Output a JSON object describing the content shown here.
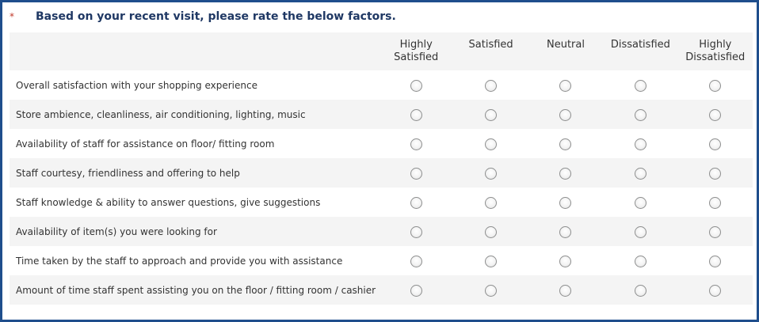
{
  "question": {
    "required_mark": "*",
    "text": "Based on your recent visit, please rate the below factors."
  },
  "columns": [
    {
      "line1": "Highly",
      "line2": "Satisfied"
    },
    {
      "line1": "Satisfied",
      "line2": ""
    },
    {
      "line1": "Neutral",
      "line2": ""
    },
    {
      "line1": "Dissatisfied",
      "line2": ""
    },
    {
      "line1": "Highly",
      "line2": "Dissatisfied"
    }
  ],
  "rows": [
    {
      "label": "Overall satisfaction with your shopping experience"
    },
    {
      "label": "Store ambience, cleanliness, air conditioning, lighting, music"
    },
    {
      "label": "Availability of staff for assistance on floor/ fitting room"
    },
    {
      "label": "Staff courtesy, friendliness and offering to help"
    },
    {
      "label": "Staff knowledge & ability to answer questions, give suggestions"
    },
    {
      "label": "Availability of item(s) you were looking for"
    },
    {
      "label": "Time taken by the staff to approach and provide you with assistance"
    },
    {
      "label": "Amount of time staff spent assisting you on the floor / fitting room / cashier"
    }
  ],
  "colors": {
    "frame_border": "#1f4e8c",
    "question_text": "#1f3864",
    "required_mark": "#c0392b",
    "stripe": "#f4f4f4"
  }
}
